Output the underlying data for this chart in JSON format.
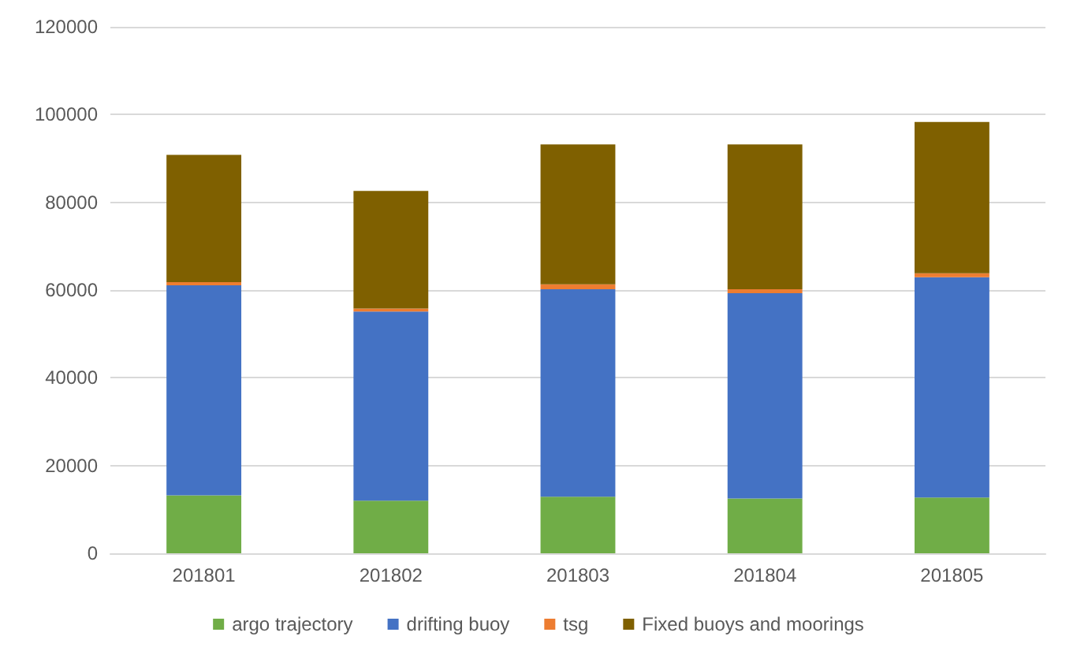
{
  "chart_data": {
    "type": "bar",
    "stacked": true,
    "categories": [
      "201801",
      "201802",
      "201803",
      "201804",
      "201805"
    ],
    "series": [
      {
        "name": "argo trajectory",
        "color": "#70ad47",
        "values": [
          13200,
          12000,
          12900,
          12500,
          12700
        ]
      },
      {
        "name": "drifting buoy",
        "color": "#4472c4",
        "values": [
          47900,
          43100,
          47300,
          46800,
          50200
        ]
      },
      {
        "name": "tsg",
        "color": "#ed7d31",
        "values": [
          700,
          700,
          1100,
          900,
          900
        ]
      },
      {
        "name": "Fixed buoys and moorings",
        "color": "#7f6000",
        "values": [
          29000,
          26800,
          31900,
          33000,
          34500
        ]
      }
    ],
    "ylim": [
      0,
      120000
    ],
    "yticks": [
      0,
      20000,
      40000,
      60000,
      80000,
      100000,
      120000
    ],
    "grid": "y",
    "legend": "bottom"
  }
}
